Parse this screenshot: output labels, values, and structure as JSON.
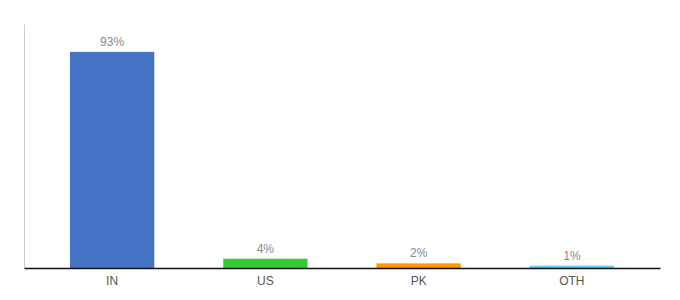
{
  "chart_data": {
    "type": "bar",
    "categories": [
      "IN",
      "US",
      "PK",
      "OTH"
    ],
    "values": [
      93,
      4,
      2,
      1
    ],
    "value_labels": [
      "93%",
      "4%",
      "2%",
      "1%"
    ],
    "colors": [
      "#4472C4",
      "#33CC33",
      "#FF9900",
      "#66CCFF"
    ],
    "ylim": [
      0,
      105
    ],
    "data_labels": true,
    "tick_labels": "x"
  }
}
